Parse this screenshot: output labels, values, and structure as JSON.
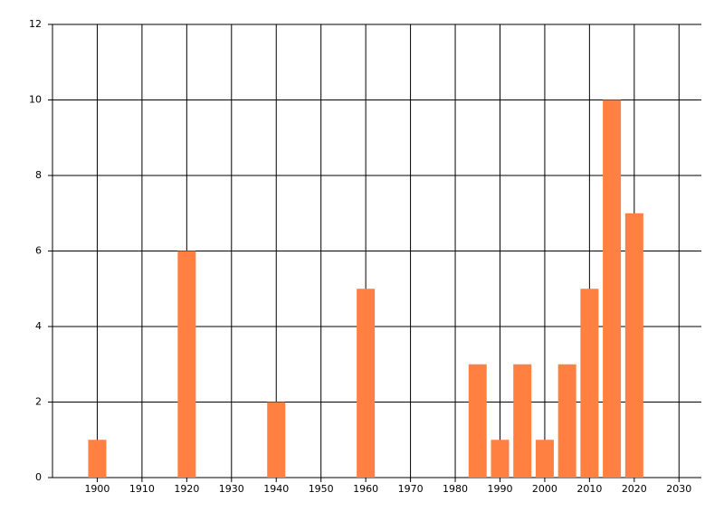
{
  "chart_data": {
    "type": "bar",
    "x": [
      1900,
      1920,
      1940,
      1960,
      1985,
      1990,
      1995,
      2000,
      2005,
      2010,
      2015,
      2020
    ],
    "values": [
      1,
      6,
      2,
      5,
      3,
      1,
      3,
      1,
      3,
      5,
      10,
      7
    ],
    "color": "#ff8040",
    "xlim": [
      1890,
      2035
    ],
    "xticks": [
      1900,
      1910,
      1920,
      1930,
      1940,
      1950,
      1960,
      1970,
      1980,
      1990,
      2000,
      2010,
      2020,
      2030
    ],
    "ylim": [
      0,
      12
    ],
    "yticks": [
      0,
      2,
      4,
      6,
      8,
      10,
      12
    ],
    "grid": true
  }
}
